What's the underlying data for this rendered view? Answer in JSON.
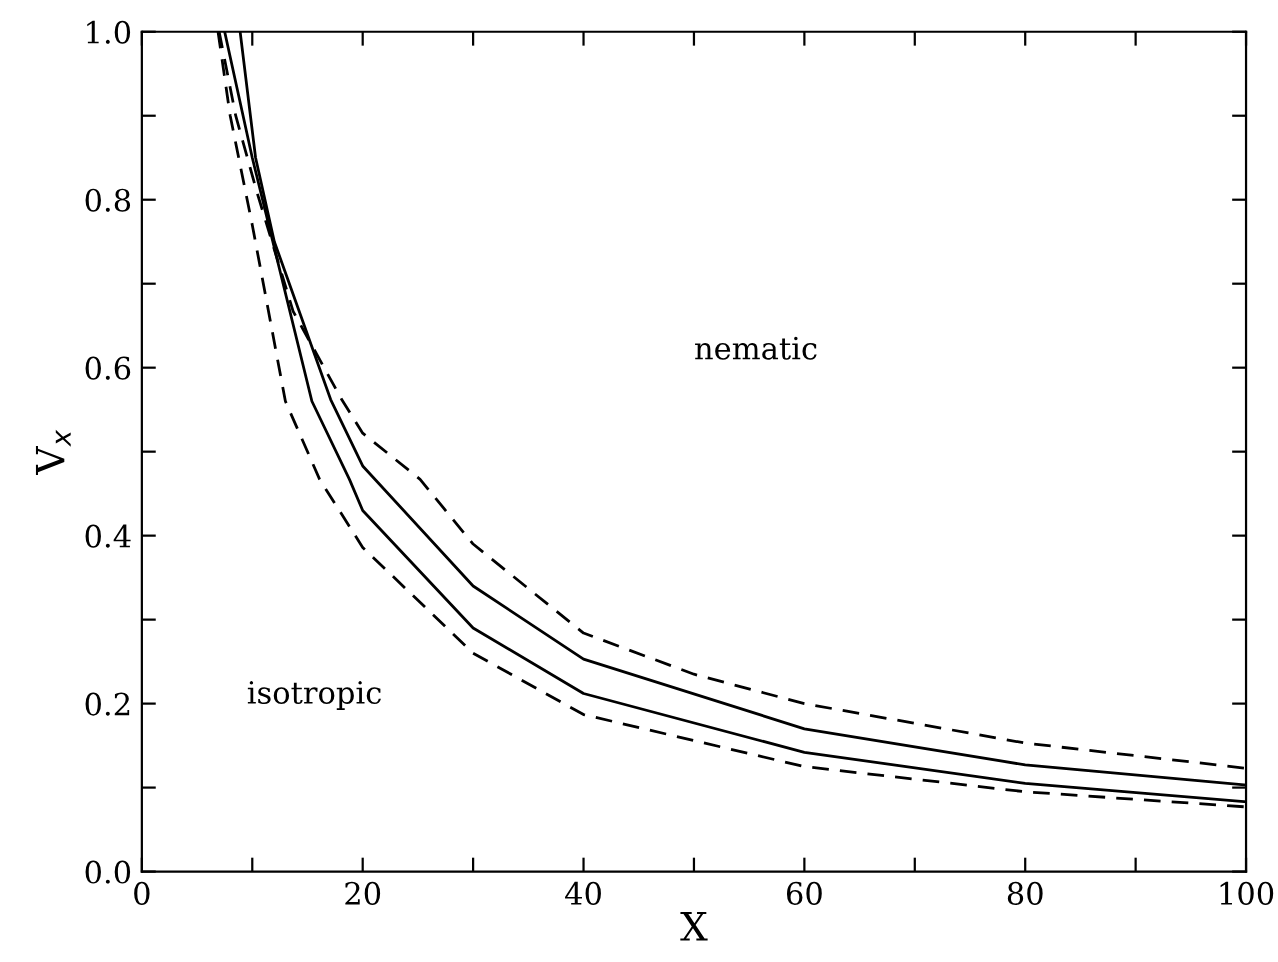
{
  "chart_data": {
    "type": "line",
    "xlabel": "X",
    "ylabel": "V$_{x}$",
    "xlim": [
      0,
      100
    ],
    "ylim": [
      0,
      1
    ],
    "xticks": [
      0,
      {
        "value": 10,
        "label": null
      },
      20,
      {
        "value": 30,
        "label": null
      },
      40,
      {
        "value": 50,
        "label": null
      },
      60,
      {
        "value": 70,
        "label": null
      },
      80,
      {
        "value": 90,
        "label": null
      },
      100
    ],
    "yticks": [
      {
        "value": 0,
        "label": "0.0"
      },
      {
        "value": 0.1,
        "label": null
      },
      0.2,
      {
        "value": 0.3,
        "label": null
      },
      0.4,
      {
        "value": 0.5,
        "label": null
      },
      0.6,
      {
        "value": 0.7,
        "label": null
      },
      0.8,
      {
        "value": 0.9,
        "label": null
      },
      {
        "value": 1,
        "label": "1.0"
      }
    ],
    "grid": false,
    "legend": false,
    "marker": "none",
    "annotations": [
      "nematic",
      "isotropic"
    ],
    "series": [
      {
        "color": "#000000",
        "line_style": "dashed",
        "x": [
          6.9,
          8,
          10,
          13,
          16.1,
          20,
          30,
          40,
          60,
          80,
          100
        ],
        "values": [
          1.0,
          0.9,
          0.77,
          0.56,
          0.467,
          0.386,
          0.26,
          0.187,
          0.125,
          0.095,
          0.077
        ]
      },
      {
        "color": "#000000",
        "line_style": "solid",
        "x": [
          7.5,
          10,
          15.4,
          18.8,
          20,
          30,
          40,
          60,
          80,
          100
        ],
        "values": [
          1.0,
          0.85,
          0.56,
          0.467,
          0.43,
          0.29,
          0.212,
          0.142,
          0.105,
          0.083
        ]
      },
      {
        "color": "#000000",
        "line_style": "solid",
        "x": [
          8.9,
          10.3,
          12,
          17.1,
          20,
          30,
          40,
          60,
          80,
          100
        ],
        "values": [
          1.0,
          0.85,
          0.75,
          0.562,
          0.483,
          0.34,
          0.253,
          0.17,
          0.127,
          0.103
        ]
      },
      {
        "color": "#000000",
        "line_style": "dashed",
        "x": [
          7.0,
          8.5,
          10.4,
          13.7,
          18.1,
          20,
          25.2,
          30,
          40,
          50,
          60,
          80,
          100
        ],
        "values": [
          1.0,
          0.9,
          0.81,
          0.667,
          0.562,
          0.522,
          0.467,
          0.39,
          0.284,
          0.235,
          0.2,
          0.153,
          0.123
        ]
      }
    ]
  }
}
